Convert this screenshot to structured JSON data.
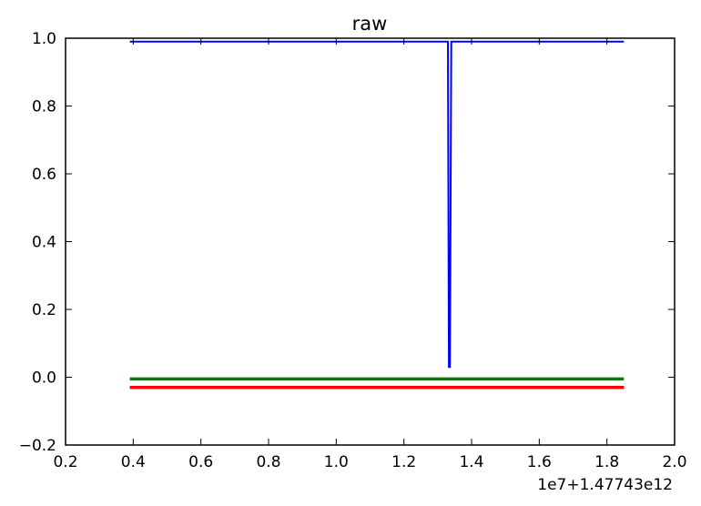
{
  "chart_data": {
    "type": "line",
    "title": "raw",
    "xlabel": "",
    "ylabel": "",
    "x_offset_label": "1e7+1.47743e12",
    "xlim": [
      0.2,
      2.0
    ],
    "ylim": [
      -0.2,
      1.0
    ],
    "x_ticks": [
      0.2,
      0.4,
      0.6,
      0.8,
      1.0,
      1.2,
      1.4,
      1.6,
      1.8,
      2.0
    ],
    "x_tick_labels": [
      "0.2",
      "0.4",
      "0.6",
      "0.8",
      "1.0",
      "1.2",
      "1.4",
      "1.6",
      "1.8",
      "2.0"
    ],
    "y_ticks": [
      -0.2,
      0.0,
      0.2,
      0.4,
      0.6,
      0.8,
      1.0
    ],
    "y_tick_labels": [
      "−0.2",
      "0.0",
      "0.2",
      "0.4",
      "0.6",
      "0.8",
      "1.0"
    ],
    "grid": false,
    "legend": "none",
    "series": [
      {
        "color": "#0000ff",
        "x": [
          0.39,
          1.33,
          1.333,
          1.336,
          1.34,
          1.85
        ],
        "y": [
          0.99,
          0.99,
          0.03,
          0.03,
          0.99,
          0.99
        ]
      },
      {
        "color": "#008000",
        "x": [
          0.39,
          1.85
        ],
        "y": [
          -0.005,
          -0.005
        ]
      },
      {
        "color": "#ff0000",
        "x": [
          0.39,
          1.85
        ],
        "y": [
          -0.03,
          -0.03
        ]
      }
    ]
  }
}
